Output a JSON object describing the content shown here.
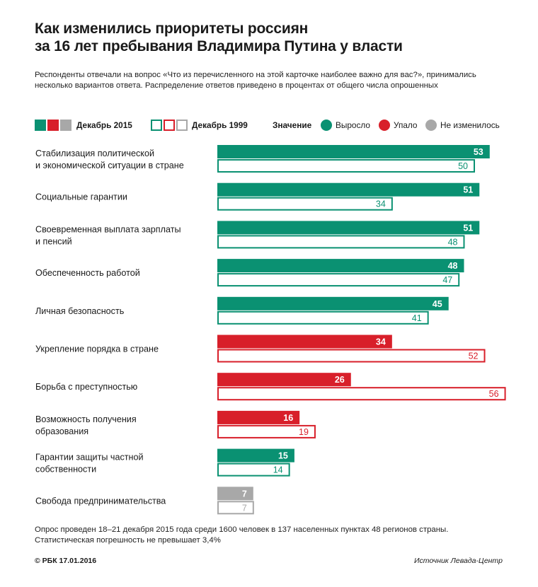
{
  "header": {
    "title_line1": "Как изменились приоритеты россиян",
    "title_line2": "за 16 лет пребывания Владимира Путина у власти",
    "subtitle": "Респонденты отвечали на вопрос «Что из перечисленного на этой карточке наиболее важно для вас?», принимались несколько вариантов ответа.  Распределение ответов приведено в процентах от общего числа опрошенных"
  },
  "legend": {
    "series_2015": "Декабрь 2015",
    "series_1999": "Декабрь 1999",
    "meaning_label": "Значение",
    "up_label": "Выросло",
    "down_label": "Упало",
    "same_label": "Не изменилось"
  },
  "colors": {
    "up": "#0a9172",
    "down": "#d81f2a",
    "same": "#a8a8a8"
  },
  "chart_data": {
    "type": "bar",
    "orientation": "horizontal",
    "categories": [
      [
        "Стабилизация политической",
        "и экономической ситуации в стране"
      ],
      [
        "Социальные гарантии"
      ],
      [
        "Своевременная выплата зарплаты",
        "и пенсий"
      ],
      [
        "Обеспеченность работой"
      ],
      [
        "Личная безопасность"
      ],
      [
        "Укрепление порядка в стране"
      ],
      [
        "Борьба с преступностью"
      ],
      [
        "Возможность получения",
        "образования"
      ],
      [
        "Гарантии защиты частной",
        "собственности"
      ],
      [
        "Свобода предпринимательства"
      ]
    ],
    "series": [
      {
        "name": "Декабрь 2015",
        "values": [
          53,
          51,
          51,
          48,
          45,
          34,
          26,
          16,
          15,
          7
        ]
      },
      {
        "name": "Декабрь 1999",
        "values": [
          50,
          34,
          48,
          47,
          41,
          52,
          56,
          19,
          14,
          7
        ]
      }
    ],
    "change": [
      "up",
      "up",
      "up",
      "up",
      "up",
      "down",
      "down",
      "down",
      "up",
      "same"
    ],
    "xlim": [
      0,
      56
    ],
    "grid": false
  },
  "footer": {
    "note_line1": "Опрос проведен 18–21 декабря 2015 года среди 1600 человек в 137 населенных пунктах 48 регионов страны.",
    "note_line2": "Статистическая погрешность не превышает 3,4%",
    "credit": "© РБК 17.01.2016",
    "source": "Источник Левада-Центр"
  }
}
